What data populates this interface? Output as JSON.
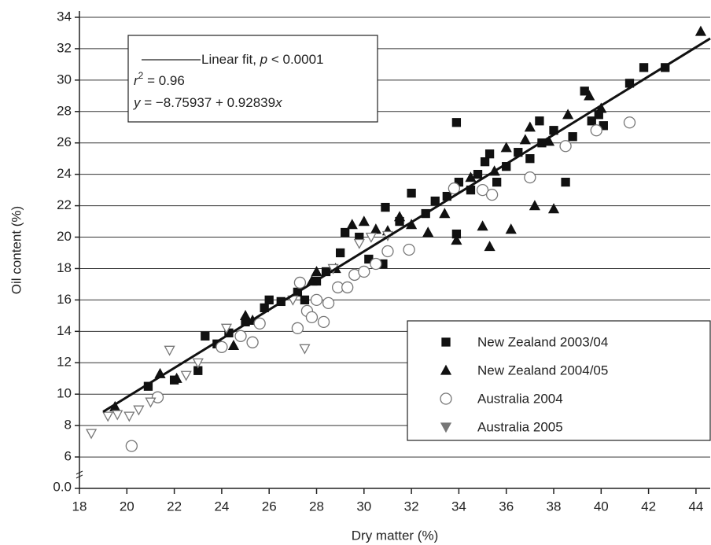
{
  "chart_data": {
    "type": "scatter",
    "x_label": "Dry matter (%)",
    "y_label": "Oil content (%)",
    "xlim": [
      18,
      44.6
    ],
    "ylim": [
      4,
      34.4
    ],
    "xticks": [
      18,
      20,
      22,
      24,
      26,
      28,
      30,
      32,
      34,
      36,
      38,
      40,
      42,
      44
    ],
    "yticks": [
      6,
      8,
      10,
      12,
      14,
      16,
      18,
      20,
      22,
      24,
      26,
      28,
      30,
      32,
      34
    ],
    "y_break_label": "0.0",
    "grid": true,
    "legend": "lower right",
    "fit_line": {
      "x": [
        19,
        44.6
      ],
      "y": [
        8.88,
        32.65
      ],
      "color": "#111"
    },
    "annotation": {
      "fit": [
        "Linear fit, ",
        "p",
        " < 0.0001"
      ],
      "r2": [
        "r",
        "2",
        " = 0.96"
      ],
      "equation": [
        "y",
        " = −8.75937 + 0.92839",
        "x"
      ]
    },
    "series": [
      {
        "name": "New Zealand 2003/04",
        "marker": "square",
        "color": "#111",
        "filled": true,
        "x": [
          23.3,
          23.8,
          24.3,
          25.0,
          25.8,
          26.0,
          26.5,
          27.2,
          27.5,
          28.0,
          28.4,
          29.0,
          29.2,
          29.8,
          30.2,
          30.8,
          30.9,
          31.5,
          32.0,
          32.6,
          33.0,
          33.5,
          33.9,
          33.9,
          34.0,
          34.5,
          34.8,
          35.1,
          35.3,
          35.6,
          36.0,
          36.5,
          37.0,
          37.4,
          37.5,
          38.0,
          38.5,
          38.8,
          39.3,
          39.6,
          39.9,
          40.1,
          41.2,
          41.8,
          42.7,
          20.9,
          22.0,
          23.0
        ],
        "values": [
          13.7,
          13.2,
          13.9,
          14.6,
          15.5,
          16.0,
          15.9,
          16.5,
          16.0,
          17.2,
          17.8,
          19.0,
          20.3,
          20.0,
          18.6,
          18.3,
          21.9,
          21.0,
          22.8,
          21.5,
          22.3,
          22.6,
          27.3,
          20.2,
          23.5,
          23.0,
          24.0,
          24.8,
          25.3,
          23.5,
          24.5,
          25.4,
          25.0,
          27.4,
          26.0,
          26.8,
          23.5,
          26.4,
          29.3,
          27.4,
          27.8,
          27.1,
          29.8,
          30.8,
          30.8,
          10.5,
          10.9,
          11.5
        ]
      },
      {
        "name": "New Zealand 2004/05",
        "marker": "triangle",
        "color": "#111",
        "filled": true,
        "x": [
          19.5,
          21.4,
          22.1,
          24.5,
          25.0,
          25.3,
          27.8,
          28.0,
          28.8,
          29.5,
          30.0,
          30.5,
          31.0,
          31.5,
          32.0,
          32.7,
          33.4,
          33.9,
          34.5,
          35.0,
          35.3,
          35.5,
          36.2,
          36.0,
          37.0,
          37.2,
          37.8,
          38.0,
          38.6,
          39.5,
          40.0,
          44.2,
          36.8
        ],
        "values": [
          9.2,
          11.3,
          11.0,
          13.1,
          15.0,
          14.7,
          17.2,
          17.8,
          18.0,
          20.8,
          21.0,
          20.5,
          20.4,
          21.3,
          20.8,
          20.3,
          21.5,
          19.8,
          23.8,
          20.7,
          19.4,
          24.2,
          20.5,
          25.7,
          27.0,
          22.0,
          26.1,
          21.8,
          27.8,
          29.0,
          28.2,
          33.1,
          26.2
        ]
      },
      {
        "name": "Australia 2004",
        "marker": "circle",
        "color": "#777",
        "filled": false,
        "x": [
          20.2,
          21.3,
          24.0,
          24.8,
          25.3,
          25.6,
          27.2,
          27.3,
          27.6,
          27.8,
          28.0,
          28.3,
          28.5,
          28.9,
          29.3,
          29.6,
          30.0,
          30.5,
          31.0,
          31.9,
          33.8,
          35.0,
          35.4,
          37.0,
          38.5,
          39.8,
          41.2
        ],
        "values": [
          6.7,
          9.8,
          13.0,
          13.7,
          13.3,
          14.5,
          14.2,
          17.1,
          15.3,
          14.9,
          16.0,
          14.6,
          15.8,
          16.8,
          16.8,
          17.6,
          17.8,
          18.3,
          19.1,
          19.2,
          23.1,
          23.0,
          22.7,
          23.8,
          25.8,
          26.8,
          27.3
        ]
      },
      {
        "name": "Australia 2005",
        "marker": "down-triangle",
        "color": "#777",
        "filled": false,
        "x": [
          18.5,
          19.2,
          19.6,
          20.1,
          20.5,
          21.0,
          21.8,
          22.5,
          23.0,
          24.2,
          27.5,
          27.0,
          28.7,
          29.8,
          30.3,
          31.0
        ],
        "values": [
          7.5,
          8.6,
          8.7,
          8.6,
          9.0,
          9.5,
          12.8,
          11.2,
          12.0,
          14.2,
          12.9,
          16.0,
          18.0,
          19.6,
          20.0,
          20.1
        ]
      }
    ]
  }
}
